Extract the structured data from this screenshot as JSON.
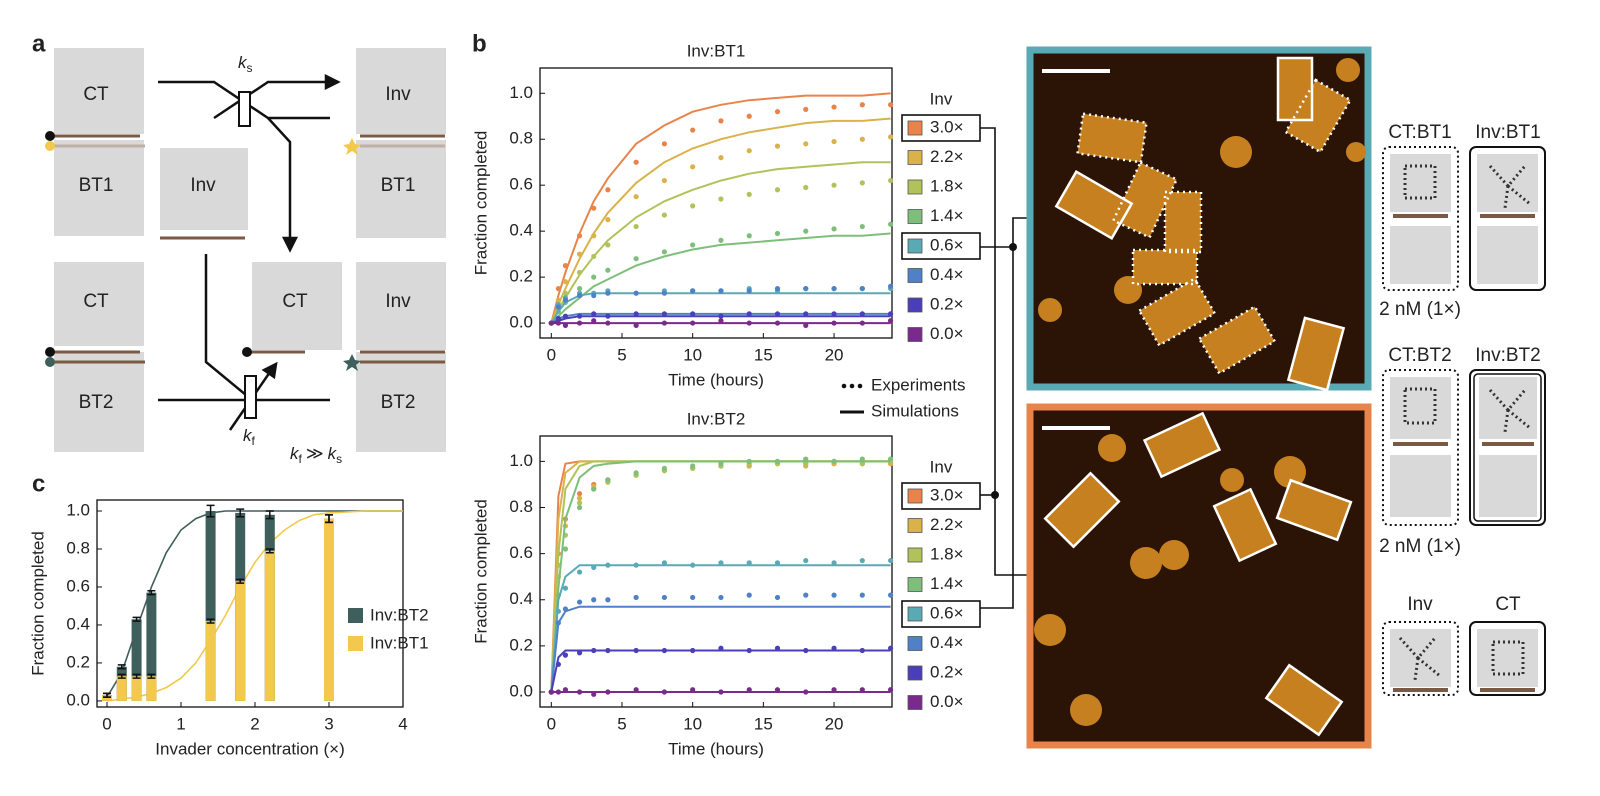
{
  "panel_labels": [
    "a",
    "b",
    "c"
  ],
  "panel_a": {
    "boxes": [
      "CT",
      "BT1",
      "Inv",
      "Inv",
      "BT1",
      "CT",
      "BT2",
      "CT",
      "Inv",
      "BT2"
    ],
    "rate_slow": {
      "symbol": "k",
      "subscript": "s"
    },
    "rate_fast": {
      "symbol": "k",
      "subscript": "f"
    },
    "relation": {
      "left": "k",
      "left_sub": "f",
      "op": "≫",
      "right": "k",
      "right_sub": "s"
    }
  },
  "panel_b": {
    "legend_experiments": "Experiments",
    "legend_simulations": "Simulations"
  },
  "schematics": [
    {
      "left": "CT:BT1",
      "right": "Inv:BT1",
      "note": "2 nM (1×)"
    },
    {
      "left": "CT:BT2",
      "right": "Inv:BT2",
      "note": "2 nM (1×)"
    },
    {
      "left": "Inv",
      "right": "CT"
    }
  ],
  "chart_data": [
    {
      "type": "line",
      "title": "Inv:BT1",
      "x_label": "Time (hours)",
      "y_label": "Fraction completed",
      "legend_title": "Inv",
      "x": [
        0,
        0.5,
        1,
        2,
        3,
        4,
        6,
        8,
        10,
        12,
        14,
        16,
        18,
        20,
        22,
        24
      ],
      "xlim": [
        -0.8,
        24.1
      ],
      "ylim": [
        -0.065,
        1.11
      ],
      "xticks": [
        0,
        5,
        10,
        15,
        20
      ],
      "yticks": [
        {
          "value": 0,
          "label": "0.0"
        },
        0.2,
        0.4,
        0.6,
        0.8,
        {
          "value": 1,
          "label": "1.0"
        }
      ],
      "series": [
        {
          "name": "3.0×",
          "color": "#e8844a",
          "boxed": true,
          "values": [
            0,
            0.15,
            0.25,
            0.38,
            0.5,
            0.58,
            0.7,
            0.78,
            0.84,
            0.88,
            0.9,
            0.92,
            0.93,
            0.94,
            0.95,
            0.95
          ],
          "simulation": [
            0,
            0.12,
            0.22,
            0.39,
            0.53,
            0.63,
            0.78,
            0.86,
            0.92,
            0.95,
            0.97,
            0.98,
            0.99,
            0.99,
            0.99,
            1.0
          ]
        },
        {
          "name": "2.2×",
          "color": "#d9b24a",
          "boxed": false,
          "values": [
            0,
            0.1,
            0.18,
            0.3,
            0.38,
            0.45,
            0.55,
            0.62,
            0.68,
            0.72,
            0.75,
            0.77,
            0.78,
            0.79,
            0.8,
            0.81
          ],
          "simulation": [
            0,
            0.08,
            0.15,
            0.28,
            0.39,
            0.48,
            0.61,
            0.7,
            0.76,
            0.8,
            0.83,
            0.85,
            0.87,
            0.88,
            0.88,
            0.89
          ]
        },
        {
          "name": "1.8×",
          "color": "#b2c25a",
          "boxed": false,
          "values": [
            0,
            0.07,
            0.13,
            0.22,
            0.29,
            0.34,
            0.42,
            0.47,
            0.51,
            0.54,
            0.56,
            0.58,
            0.59,
            0.6,
            0.61,
            0.62
          ],
          "simulation": [
            0,
            0.06,
            0.11,
            0.21,
            0.29,
            0.36,
            0.46,
            0.53,
            0.58,
            0.62,
            0.65,
            0.67,
            0.68,
            0.69,
            0.7,
            0.7
          ]
        },
        {
          "name": "1.4×",
          "color": "#7dbf7a",
          "boxed": false,
          "values": [
            0,
            0.05,
            0.09,
            0.15,
            0.2,
            0.23,
            0.28,
            0.31,
            0.34,
            0.36,
            0.38,
            0.39,
            0.4,
            0.41,
            0.42,
            0.43
          ],
          "simulation": [
            0,
            0.03,
            0.06,
            0.11,
            0.16,
            0.19,
            0.25,
            0.29,
            0.32,
            0.34,
            0.35,
            0.36,
            0.37,
            0.38,
            0.38,
            0.39
          ]
        },
        {
          "name": "0.6×",
          "color": "#5aaab5",
          "boxed": true,
          "values": [
            0,
            0.08,
            0.11,
            0.13,
            0.13,
            0.14,
            0.13,
            0.14,
            0.14,
            0.14,
            0.15,
            0.14,
            0.15,
            0.15,
            0.15,
            0.15
          ],
          "simulation": [
            0,
            0.05,
            0.09,
            0.12,
            0.13,
            0.13,
            0.13,
            0.13,
            0.13,
            0.13,
            0.13,
            0.13,
            0.13,
            0.13,
            0.13,
            0.13
          ]
        },
        {
          "name": "0.4×",
          "color": "#4f80c8",
          "boxed": false,
          "values": [
            0,
            0.07,
            0.1,
            0.12,
            0.12,
            0.13,
            0.13,
            0.13,
            0.14,
            0.14,
            0.14,
            0.15,
            0.15,
            0.15,
            0.15,
            0.16
          ],
          "simulation": [
            0,
            0.02,
            0.03,
            0.04,
            0.04,
            0.04,
            0.04,
            0.04,
            0.04,
            0.04,
            0.04,
            0.04,
            0.04,
            0.04,
            0.04,
            0.04
          ]
        },
        {
          "name": "0.2×",
          "color": "#4a3fb8",
          "boxed": false,
          "values": [
            0,
            0.02,
            0.03,
            0.03,
            0.04,
            0.03,
            0.04,
            0.04,
            0.04,
            0.03,
            0.04,
            0.04,
            0.04,
            0.04,
            0.04,
            0.04
          ],
          "simulation": [
            0,
            0.01,
            0.02,
            0.03,
            0.03,
            0.03,
            0.03,
            0.03,
            0.03,
            0.03,
            0.03,
            0.03,
            0.03,
            0.03,
            0.03,
            0.03
          ]
        },
        {
          "name": "0.0×",
          "color": "#7a2a8a",
          "boxed": false,
          "values": [
            0,
            0,
            -0.01,
            0,
            0.01,
            0,
            -0.01,
            0,
            0,
            0.01,
            0,
            0,
            -0.01,
            0,
            0,
            0.01
          ],
          "simulation": [
            0,
            0,
            0,
            0,
            0,
            0,
            0,
            0,
            0,
            0,
            0,
            0,
            0,
            0,
            0,
            0
          ]
        }
      ]
    },
    {
      "type": "line",
      "title": "Inv:BT2",
      "x_label": "Time (hours)",
      "y_label": "Fraction completed",
      "legend_title": "Inv",
      "x": [
        0,
        0.5,
        1,
        2,
        3,
        4,
        6,
        8,
        10,
        12,
        14,
        16,
        18,
        20,
        22,
        24
      ],
      "xlim": [
        -0.8,
        24.1
      ],
      "ylim": [
        -0.065,
        1.11
      ],
      "xticks": [
        0,
        5,
        10,
        15,
        20
      ],
      "yticks": [
        {
          "value": 0,
          "label": "0.0"
        },
        0.2,
        0.4,
        0.6,
        0.8,
        {
          "value": 1,
          "label": "1.0"
        }
      ],
      "series": [
        {
          "name": "3.0×",
          "color": "#e8844a",
          "boxed": true,
          "values": [
            0,
            0.6,
            0.75,
            0.86,
            0.9,
            0.92,
            0.94,
            0.96,
            0.97,
            0.98,
            0.98,
            0.99,
            0.99,
            0.99,
            0.99,
            0.99
          ],
          "simulation": [
            0,
            0.85,
            0.99,
            1,
            1,
            1,
            1,
            1,
            1,
            1,
            1,
            1,
            1,
            1,
            1,
            1
          ]
        },
        {
          "name": "2.2×",
          "color": "#d9b24a",
          "boxed": false,
          "values": [
            0,
            0.55,
            0.72,
            0.84,
            0.89,
            0.91,
            0.94,
            0.96,
            0.97,
            0.98,
            0.98,
            0.99,
            0.98,
            0.99,
            0.99,
            0.99
          ],
          "simulation": [
            0,
            0.75,
            0.95,
            1,
            1,
            1,
            1,
            1,
            1,
            1,
            1,
            1,
            1,
            1,
            1,
            1
          ]
        },
        {
          "name": "1.8×",
          "color": "#b2c25a",
          "boxed": false,
          "values": [
            0,
            0.5,
            0.68,
            0.82,
            0.88,
            0.91,
            0.94,
            0.96,
            0.97,
            0.98,
            0.99,
            0.99,
            0.99,
            1.0,
            0.99,
            1.0
          ],
          "simulation": [
            0,
            0.6,
            0.88,
            0.98,
            1,
            1,
            1,
            1,
            1,
            1,
            1,
            1,
            1,
            1,
            1,
            1
          ]
        },
        {
          "name": "1.4×",
          "color": "#7dbf7a",
          "boxed": false,
          "values": [
            0,
            0.42,
            0.62,
            0.8,
            0.88,
            0.92,
            0.95,
            0.97,
            0.98,
            0.99,
            1.0,
            1.0,
            1.01,
            1.0,
            1.01,
            1.01
          ],
          "simulation": [
            0,
            0.45,
            0.75,
            0.93,
            0.98,
            0.99,
            1,
            1,
            1,
            1,
            1,
            1,
            1,
            1,
            1,
            1
          ]
        },
        {
          "name": "0.6×",
          "color": "#5aaab5",
          "boxed": true,
          "values": [
            0,
            0.35,
            0.45,
            0.52,
            0.54,
            0.55,
            0.55,
            0.56,
            0.55,
            0.56,
            0.56,
            0.56,
            0.57,
            0.56,
            0.57,
            0.57
          ],
          "simulation": [
            0,
            0.4,
            0.5,
            0.55,
            0.55,
            0.55,
            0.55,
            0.55,
            0.55,
            0.55,
            0.55,
            0.55,
            0.55,
            0.55,
            0.55,
            0.55
          ]
        },
        {
          "name": "0.4×",
          "color": "#4f80c8",
          "boxed": false,
          "values": [
            0,
            0.3,
            0.36,
            0.39,
            0.4,
            0.4,
            0.41,
            0.41,
            0.41,
            0.41,
            0.42,
            0.41,
            0.42,
            0.42,
            0.42,
            0.42
          ],
          "simulation": [
            0,
            0.3,
            0.35,
            0.37,
            0.37,
            0.37,
            0.37,
            0.37,
            0.37,
            0.37,
            0.37,
            0.37,
            0.37,
            0.37,
            0.37,
            0.37
          ]
        },
        {
          "name": "0.2×",
          "color": "#4a3fb8",
          "boxed": false,
          "values": [
            0,
            0.12,
            0.16,
            0.17,
            0.18,
            0.18,
            0.18,
            0.18,
            0.18,
            0.19,
            0.18,
            0.19,
            0.18,
            0.19,
            0.18,
            0.19
          ],
          "simulation": [
            0,
            0.15,
            0.18,
            0.18,
            0.18,
            0.18,
            0.18,
            0.18,
            0.18,
            0.18,
            0.18,
            0.18,
            0.18,
            0.18,
            0.18,
            0.18
          ]
        },
        {
          "name": "0.0×",
          "color": "#7a2a8a",
          "boxed": false,
          "values": [
            0,
            0,
            0.01,
            0,
            -0.01,
            0,
            0.01,
            0,
            0.01,
            0,
            0.01,
            0.01,
            0,
            0.01,
            0.01,
            0.01
          ],
          "simulation": [
            0,
            0,
            0,
            0,
            0,
            0,
            0,
            0,
            0,
            0,
            0,
            0,
            0,
            0,
            0,
            0
          ]
        }
      ]
    },
    {
      "type": "bar",
      "x_label": "Invader concentration (×)",
      "y_label": "Fraction completed",
      "x": [
        0,
        0.2,
        0.4,
        0.6,
        1.4,
        1.8,
        2.2,
        3
      ],
      "fit_x": [
        0,
        0.2,
        0.4,
        0.6,
        0.8,
        1.0,
        1.2,
        1.4,
        1.6,
        1.8,
        2.0,
        2.2,
        2.4,
        2.6,
        2.8,
        3.0,
        3.5,
        4.0
      ],
      "xlim": [
        -0.135,
        4.0
      ],
      "ylim": [
        -0.032,
        1.058
      ],
      "xticks": [
        0,
        1,
        2,
        3,
        4
      ],
      "yticks": [
        {
          "value": 0,
          "label": "0.0"
        },
        0.2,
        0.4,
        0.6,
        0.8,
        {
          "value": 1,
          "label": "1.0"
        }
      ],
      "series": [
        {
          "name": "Inv:BT2",
          "color": "#3f5f5c",
          "values": [
            0.03,
            0.18,
            0.43,
            0.57,
            1.0,
            0.99,
            0.98,
            0.96
          ],
          "errors": [
            0.01,
            0.01,
            0.01,
            0.01,
            0.03,
            0.02,
            0.02,
            0.02
          ],
          "fit": [
            0.02,
            0.15,
            0.38,
            0.6,
            0.78,
            0.9,
            0.96,
            0.99,
            1,
            1,
            1,
            1,
            1,
            1,
            1,
            1,
            1,
            1
          ]
        },
        {
          "name": "Inv:BT1",
          "color": "#f2c94c",
          "values": [
            0.03,
            0.13,
            0.13,
            0.13,
            0.42,
            0.63,
            0.79,
            0.96
          ],
          "errors": [
            0.01,
            0.01,
            0.01,
            0.01,
            0.01,
            0.01,
            0.01,
            0.02
          ],
          "fit": [
            0,
            0.01,
            0.02,
            0.04,
            0.07,
            0.12,
            0.2,
            0.32,
            0.45,
            0.6,
            0.73,
            0.83,
            0.9,
            0.95,
            0.98,
            0.99,
            1,
            1
          ]
        }
      ]
    }
  ]
}
